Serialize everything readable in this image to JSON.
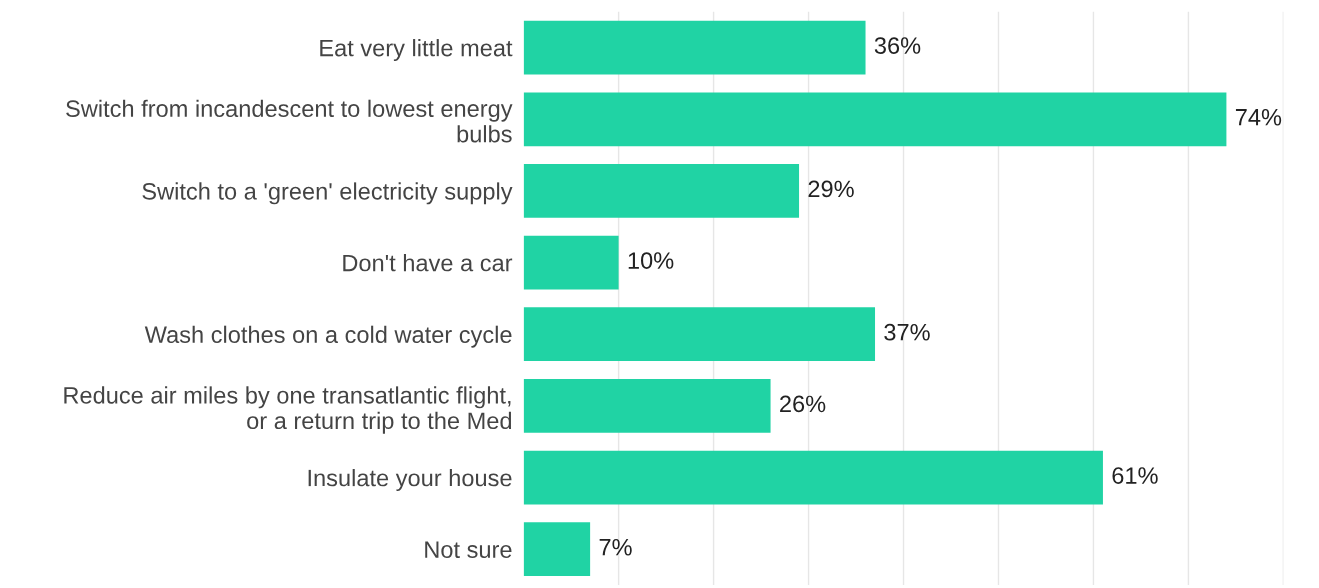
{
  "chart_data": {
    "type": "bar",
    "orientation": "horizontal",
    "categories": [
      "Eat very little meat",
      "Switch from incandescent to lowest energy\nbulbs",
      "Switch to a 'green' electricity supply",
      "Don't have a car",
      "Wash clothes on a cold water cycle",
      "Reduce air miles by one transatlantic flight,\nor a return trip to the Med",
      "Insulate your house",
      "Not sure"
    ],
    "values": [
      36,
      74,
      29,
      10,
      37,
      26,
      61,
      7
    ],
    "value_labels": [
      "36%",
      "74%",
      "29%",
      "10%",
      "37%",
      "26%",
      "61%",
      "7%"
    ],
    "color": "#20d3a4",
    "xlim": [
      0,
      80
    ],
    "xticks": [
      {
        "value": 10,
        "label": null
      },
      {
        "value": 20,
        "label": null
      },
      {
        "value": 30,
        "label": null
      },
      {
        "value": 40,
        "label": null
      },
      {
        "value": 50,
        "label": null
      },
      {
        "value": 60,
        "label": null
      },
      {
        "value": 70,
        "label": null
      },
      {
        "value": 80,
        "label": null
      }
    ],
    "grid": "x",
    "tick_labels": "y",
    "legend": false
  }
}
